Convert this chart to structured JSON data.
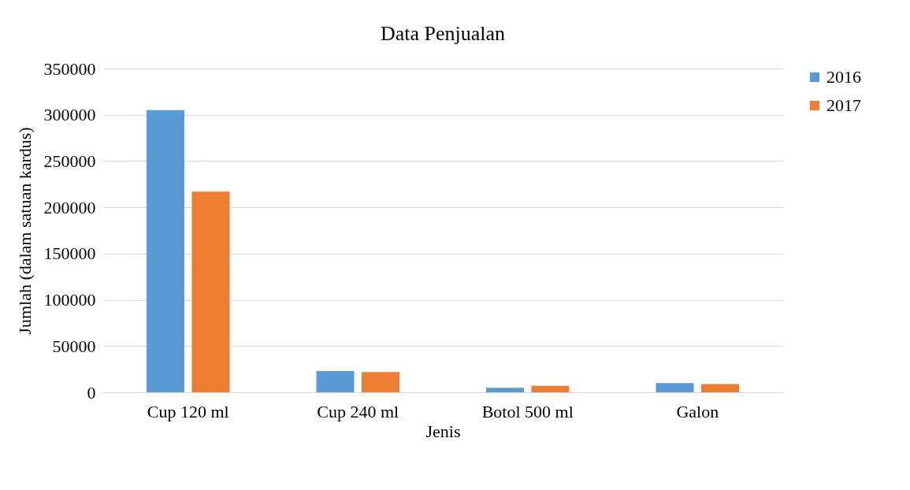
{
  "chart_data": {
    "type": "bar",
    "title": "Data Penjualan",
    "xlabel": "Jenis",
    "ylabel": "Jumlah (dalam satuan kardus)",
    "categories": [
      "Cup 120 ml",
      "Cup 240 ml",
      "Botol 500 ml",
      "Galon"
    ],
    "series": [
      {
        "name": "2016",
        "color": "#5b9bd5",
        "values": [
          305000,
          23000,
          5000,
          10000
        ]
      },
      {
        "name": "2017",
        "color": "#ed7d31",
        "values": [
          217000,
          22000,
          7000,
          9000
        ]
      }
    ],
    "ylim": [
      0,
      350000
    ],
    "yticks": [
      0,
      50000,
      100000,
      150000,
      200000,
      250000,
      300000,
      350000
    ],
    "grid": "y",
    "legend": "right"
  }
}
